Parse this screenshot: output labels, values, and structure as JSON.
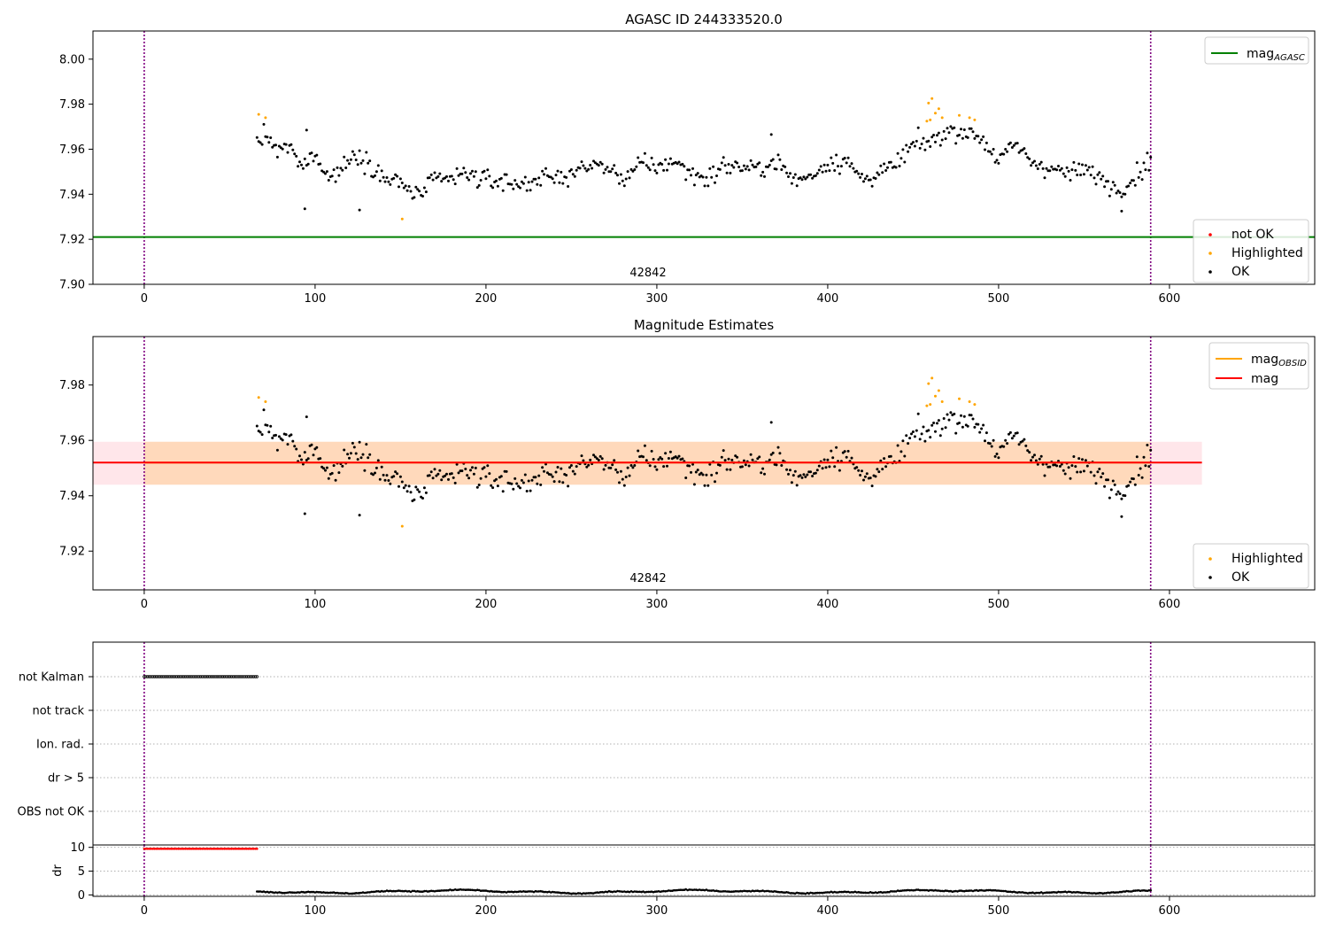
{
  "figure": {
    "panels": [
      {
        "title": "AGASC ID 244333520.0",
        "annotation": "42842"
      },
      {
        "title": "Magnitude Estimates",
        "annotation": "42842"
      }
    ]
  },
  "chart_data": [
    {
      "type": "scatter",
      "title": "AGASC ID 244333520.0",
      "xlim": [
        -30,
        685
      ],
      "ylim": [
        7.9,
        8.0125
      ],
      "xticks": [
        0,
        100,
        200,
        300,
        400,
        500,
        600
      ],
      "yticks": [
        "7.90",
        "7.92",
        "7.94",
        "7.96",
        "7.98",
        "8.00"
      ],
      "vlines": [
        0,
        589
      ],
      "hlines": [
        {
          "name": "mag_AGASC",
          "value": 7.921,
          "color": "#008000"
        }
      ],
      "annotation": {
        "text": "42842",
        "x": 294
      },
      "legend_upper": [
        {
          "label": "mag",
          "sub": "AGASC",
          "color": "#008000",
          "kind": "line"
        }
      ],
      "legend_lower": [
        {
          "label": "not OK",
          "color": "#ff0000",
          "kind": "dot"
        },
        {
          "label": "Highlighted",
          "color": "#ffa500",
          "kind": "dot"
        },
        {
          "label": "OK",
          "color": "#000000",
          "kind": "dot"
        }
      ],
      "series": [
        {
          "name": "Highlighted",
          "color": "#ffa500",
          "points": [
            [
              67,
              7.9755
            ],
            [
              71,
              7.974
            ],
            [
              151,
              7.929
            ],
            [
              458,
              7.9725
            ],
            [
              459,
              7.9805
            ],
            [
              460,
              7.973
            ],
            [
              461,
              7.9825
            ],
            [
              463,
              7.976
            ],
            [
              465,
              7.978
            ],
            [
              467,
              7.974
            ],
            [
              477,
              7.975
            ],
            [
              483,
              7.974
            ],
            [
              486,
              7.973
            ]
          ]
        },
        {
          "name": "OK",
          "color": "#000000",
          "curve": [
            [
              65,
              7.963
            ],
            [
              72,
              7.966
            ],
            [
              78,
              7.958
            ],
            [
              85,
              7.962
            ],
            [
              92,
              7.951
            ],
            [
              100,
              7.959
            ],
            [
              108,
              7.947
            ],
            [
              116,
              7.952
            ],
            [
              124,
              7.958
            ],
            [
              132,
              7.954
            ],
            [
              140,
              7.947
            ],
            [
              150,
              7.945
            ],
            [
              160,
              7.939
            ],
            [
              170,
              7.946
            ],
            [
              180,
              7.947
            ],
            [
              190,
              7.949
            ],
            [
              200,
              7.946
            ],
            [
              210,
              7.946
            ],
            [
              220,
              7.944
            ],
            [
              230,
              7.947
            ],
            [
              240,
              7.947
            ],
            [
              250,
              7.949
            ],
            [
              260,
              7.953
            ],
            [
              270,
              7.952
            ],
            [
              280,
              7.947
            ],
            [
              290,
              7.953
            ],
            [
              300,
              7.952
            ],
            [
              310,
              7.955
            ],
            [
              320,
              7.949
            ],
            [
              330,
              7.947
            ],
            [
              340,
              7.953
            ],
            [
              350,
              7.952
            ],
            [
              360,
              7.951
            ],
            [
              370,
              7.955
            ],
            [
              380,
              7.946
            ],
            [
              390,
              7.948
            ],
            [
              400,
              7.954
            ],
            [
              410,
              7.955
            ],
            [
              420,
              7.947
            ],
            [
              430,
              7.949
            ],
            [
              440,
              7.953
            ],
            [
              450,
              7.962
            ],
            [
              460,
              7.963
            ],
            [
              470,
              7.968
            ],
            [
              480,
              7.968
            ],
            [
              490,
              7.965
            ],
            [
              500,
              7.955
            ],
            [
              510,
              7.962
            ],
            [
              520,
              7.954
            ],
            [
              530,
              7.952
            ],
            [
              540,
              7.949
            ],
            [
              550,
              7.951
            ],
            [
              560,
              7.947
            ],
            [
              570,
              7.942
            ],
            [
              580,
              7.948
            ],
            [
              588,
              7.955
            ]
          ]
        }
      ]
    },
    {
      "type": "scatter",
      "title": "Magnitude Estimates",
      "xlim": [
        -30,
        685
      ],
      "ylim": [
        7.906,
        7.9975
      ],
      "xticks": [
        0,
        100,
        200,
        300,
        400,
        500,
        600
      ],
      "yticks": [
        "7.92",
        "7.94",
        "7.96",
        "7.98"
      ],
      "vlines": [
        0,
        589
      ],
      "bands": [
        {
          "name": "mag_err",
          "lo": 7.944,
          "hi": 7.9595,
          "x0": -30,
          "x1": 619,
          "color": "#ffc0cb"
        },
        {
          "name": "mag_OBSID_err",
          "lo": 7.944,
          "hi": 7.9595,
          "x0": 0,
          "x1": 589,
          "color": "#ffa500"
        }
      ],
      "hlines": [
        {
          "name": "mag_OBSID",
          "value": 7.952,
          "x0": 0,
          "x1": 589,
          "color": "#ffa500"
        },
        {
          "name": "mag",
          "value": 7.952,
          "x0": -30,
          "x1": 619,
          "color": "#ff0000"
        }
      ],
      "annotation": {
        "text": "42842",
        "x": 294
      },
      "legend_upper": [
        {
          "label": "mag",
          "sub": "OBSID",
          "color": "#ffa500",
          "kind": "line"
        },
        {
          "label": "mag",
          "sub": "",
          "color": "#ff0000",
          "kind": "line"
        }
      ],
      "legend_lower": [
        {
          "label": "Highlighted",
          "color": "#ffa500",
          "kind": "dot"
        },
        {
          "label": "OK",
          "color": "#000000",
          "kind": "dot"
        }
      ],
      "series_ref": 0
    },
    {
      "type": "scatter",
      "xlim": [
        -30,
        685
      ],
      "categories": [
        "not Kalman",
        "not track",
        "Ion. rad.",
        "dr > 5",
        "OBS not OK"
      ],
      "flag_points": {
        "category": "not Kalman",
        "x_range": [
          0,
          66
        ],
        "color": "#000000"
      },
      "vlines": [
        0,
        589
      ]
    },
    {
      "type": "scatter",
      "ylabel": "dr",
      "xlim": [
        -30,
        685
      ],
      "ylim": [
        -0.3,
        10.5
      ],
      "xticks": [
        0,
        100,
        200,
        300,
        400,
        500,
        600
      ],
      "yticks": [
        "0",
        "5",
        "10"
      ],
      "vlines": [
        0,
        589
      ],
      "series": [
        {
          "name": "not Kalman",
          "color": "#ff0000",
          "x_range": [
            0,
            66
          ],
          "value": 9.7
        },
        {
          "name": "dr",
          "color": "#000000",
          "x_range": [
            66,
            589
          ],
          "value": 0.7
        }
      ]
    }
  ]
}
